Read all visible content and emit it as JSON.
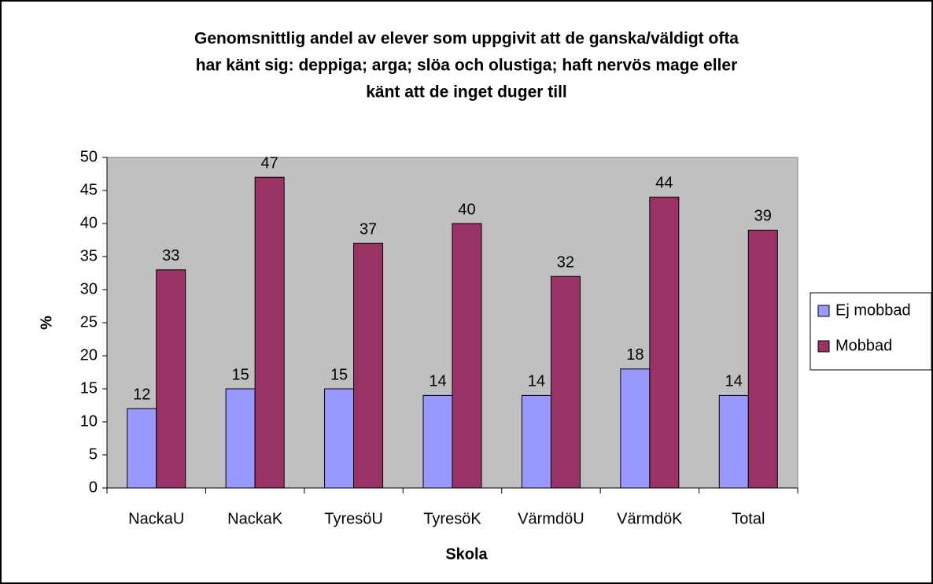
{
  "chart_data": {
    "type": "bar",
    "title": [
      "Genomsnittlig andel av elever som uppgivit att de ganska/väldigt ofta",
      "har känt sig: deppiga; arga; slöa och olustiga; haft nervös mage eller",
      "känt att de inget duger till"
    ],
    "xlabel": "Skola",
    "ylabel": "%",
    "categories": [
      "NackaU",
      "NackaK",
      "TyresöU",
      "TyresöK",
      "VärmdöU",
      "VärmdöK",
      "Total"
    ],
    "series": [
      {
        "name": "Ej mobbad",
        "color": "#9999ff",
        "values": [
          12,
          15,
          15,
          14,
          14,
          18,
          14
        ]
      },
      {
        "name": "Mobbad",
        "color": "#993366",
        "values": [
          33,
          47,
          37,
          40,
          32,
          44,
          39
        ]
      }
    ],
    "ylim": [
      0,
      50
    ],
    "yticks": [
      0,
      5,
      10,
      15,
      20,
      25,
      30,
      35,
      40,
      45,
      50
    ],
    "grid": false,
    "legend": "right",
    "plot_background": "#c0c0c0"
  }
}
